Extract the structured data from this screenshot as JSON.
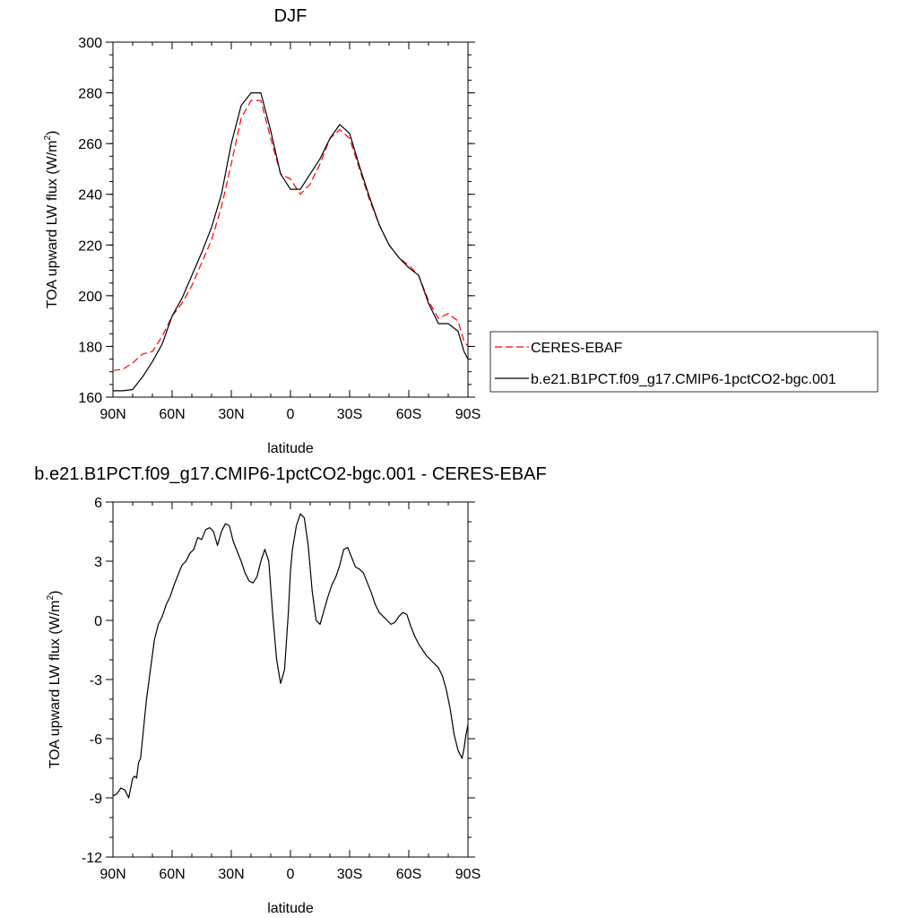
{
  "chart_data": [
    {
      "type": "line",
      "title": "DJF",
      "xlabel": "latitude",
      "ylabel_main": "TOA upward LW flux (W/m",
      "ylabel_sup": "2",
      "ylabel_close": ")",
      "xlim": [
        90,
        -90
      ],
      "ylim": [
        160,
        300
      ],
      "x_ticks": [
        {
          "value": 90,
          "label": "90N"
        },
        {
          "value": 60,
          "label": "60N"
        },
        {
          "value": 30,
          "label": "30N"
        },
        {
          "value": 0,
          "label": "0"
        },
        {
          "value": -30,
          "label": "30S"
        },
        {
          "value": -60,
          "label": "60S"
        },
        {
          "value": -90,
          "label": "90S"
        }
      ],
      "y_ticks": [
        160,
        180,
        200,
        220,
        240,
        260,
        280,
        300
      ],
      "grid": false,
      "legend_position": "right",
      "series": [
        {
          "name": "CERES-EBAF",
          "color": "#ff0000",
          "dash": "dashed",
          "x": [
            90,
            85,
            80,
            75,
            70,
            65,
            60,
            55,
            50,
            45,
            40,
            35,
            30,
            25,
            20,
            15,
            10,
            5,
            0,
            -5,
            -10,
            -15,
            -20,
            -25,
            -30,
            -35,
            -40,
            -45,
            -50,
            -55,
            -60,
            -65,
            -70,
            -75,
            -80,
            -85,
            -88,
            -90
          ],
          "y": [
            170.5,
            171,
            173.5,
            177,
            178,
            184,
            192,
            197,
            204,
            213,
            222,
            235,
            252,
            270,
            277,
            277,
            262,
            248,
            246,
            240,
            244,
            252,
            262,
            265.5,
            262,
            250,
            238,
            228,
            220,
            215,
            212,
            208,
            198,
            191,
            193,
            190,
            182,
            180
          ]
        },
        {
          "name": "b.e21.B1PCT.f09_g17.CMIP6-1pctCO2-bgc.001",
          "color": "#000000",
          "dash": "solid",
          "x": [
            90,
            85,
            80,
            75,
            70,
            65,
            60,
            55,
            50,
            45,
            40,
            35,
            30,
            25,
            20,
            15,
            10,
            5,
            0,
            -5,
            -10,
            -15,
            -20,
            -25,
            -30,
            -35,
            -40,
            -45,
            -50,
            -55,
            -60,
            -65,
            -70,
            -75,
            -80,
            -85,
            -88,
            -90
          ],
          "y": [
            162.5,
            162.5,
            163,
            168,
            174,
            181,
            192,
            199,
            208,
            217,
            227,
            240,
            260,
            275,
            280,
            280,
            265,
            248,
            242,
            242,
            248,
            254,
            262,
            267.5,
            264,
            251,
            239,
            228,
            220,
            215,
            211,
            208,
            197,
            189,
            189,
            186,
            178,
            175
          ]
        }
      ]
    },
    {
      "type": "line",
      "title": "b.e21.B1PCT.f09_g17.CMIP6-1pctCO2-bgc.001 - CERES-EBAF",
      "xlabel": "latitude",
      "ylabel_main": "TOA upward LW flux (W/m",
      "ylabel_sup": "2",
      "ylabel_close": ")",
      "xlim": [
        90,
        -90
      ],
      "ylim": [
        -12,
        6
      ],
      "x_ticks": [
        {
          "value": 90,
          "label": "90N"
        },
        {
          "value": 60,
          "label": "60N"
        },
        {
          "value": 30,
          "label": "30N"
        },
        {
          "value": 0,
          "label": "0"
        },
        {
          "value": -30,
          "label": "30S"
        },
        {
          "value": -60,
          "label": "60S"
        },
        {
          "value": -90,
          "label": "90S"
        }
      ],
      "y_ticks": [
        -12,
        -9,
        -6,
        -3,
        0,
        3,
        6
      ],
      "grid": false,
      "series": [
        {
          "color": "#000000",
          "x": [
            90,
            88,
            86,
            84,
            82,
            80,
            79,
            78,
            77,
            76,
            75,
            73,
            71,
            69,
            67,
            65,
            63,
            61,
            59,
            57,
            55,
            53,
            51,
            49,
            47,
            45,
            43,
            41,
            39,
            37,
            35,
            33,
            31,
            29,
            27,
            25,
            23,
            21,
            19,
            17,
            15,
            13,
            11,
            9,
            7,
            5,
            3,
            1,
            0,
            -1,
            -3,
            -5,
            -7,
            -9,
            -11,
            -13,
            -15,
            -17,
            -19,
            -21,
            -23,
            -25,
            -27,
            -29,
            -31,
            -33,
            -35,
            -37,
            -39,
            -41,
            -43,
            -45,
            -47,
            -49,
            -51,
            -53,
            -55,
            -57,
            -59,
            -61,
            -63,
            -65,
            -67,
            -69,
            -71,
            -73,
            -75,
            -77,
            -79,
            -81,
            -83,
            -85,
            -87,
            -88,
            -89,
            -90
          ],
          "y": [
            -8.9,
            -8.8,
            -8.5,
            -8.6,
            -9.0,
            -8.0,
            -7.9,
            -8.0,
            -7.2,
            -7.0,
            -6.0,
            -4.0,
            -2.5,
            -1.0,
            -0.2,
            0.2,
            0.8,
            1.2,
            1.8,
            2.3,
            2.8,
            3.0,
            3.4,
            3.6,
            4.2,
            4.1,
            4.6,
            4.7,
            4.5,
            3.8,
            4.5,
            4.9,
            4.8,
            4.0,
            3.5,
            3.0,
            2.4,
            2.0,
            1.9,
            2.2,
            3.0,
            3.6,
            3.0,
            0.3,
            -2.0,
            -3.2,
            -2.5,
            0.5,
            2.5,
            3.6,
            4.8,
            5.4,
            5.2,
            3.8,
            1.5,
            0.0,
            -0.2,
            0.5,
            1.2,
            1.8,
            2.2,
            2.8,
            3.6,
            3.7,
            3.2,
            2.7,
            2.6,
            2.4,
            1.9,
            1.4,
            0.8,
            0.4,
            0.2,
            0.0,
            -0.2,
            -0.1,
            0.2,
            0.4,
            0.3,
            -0.3,
            -0.8,
            -1.2,
            -1.5,
            -1.8,
            -2.0,
            -2.2,
            -2.4,
            -2.8,
            -3.5,
            -4.5,
            -5.8,
            -6.6,
            -7.0,
            -6.5,
            -5.8,
            -5.3
          ]
        }
      ]
    }
  ]
}
